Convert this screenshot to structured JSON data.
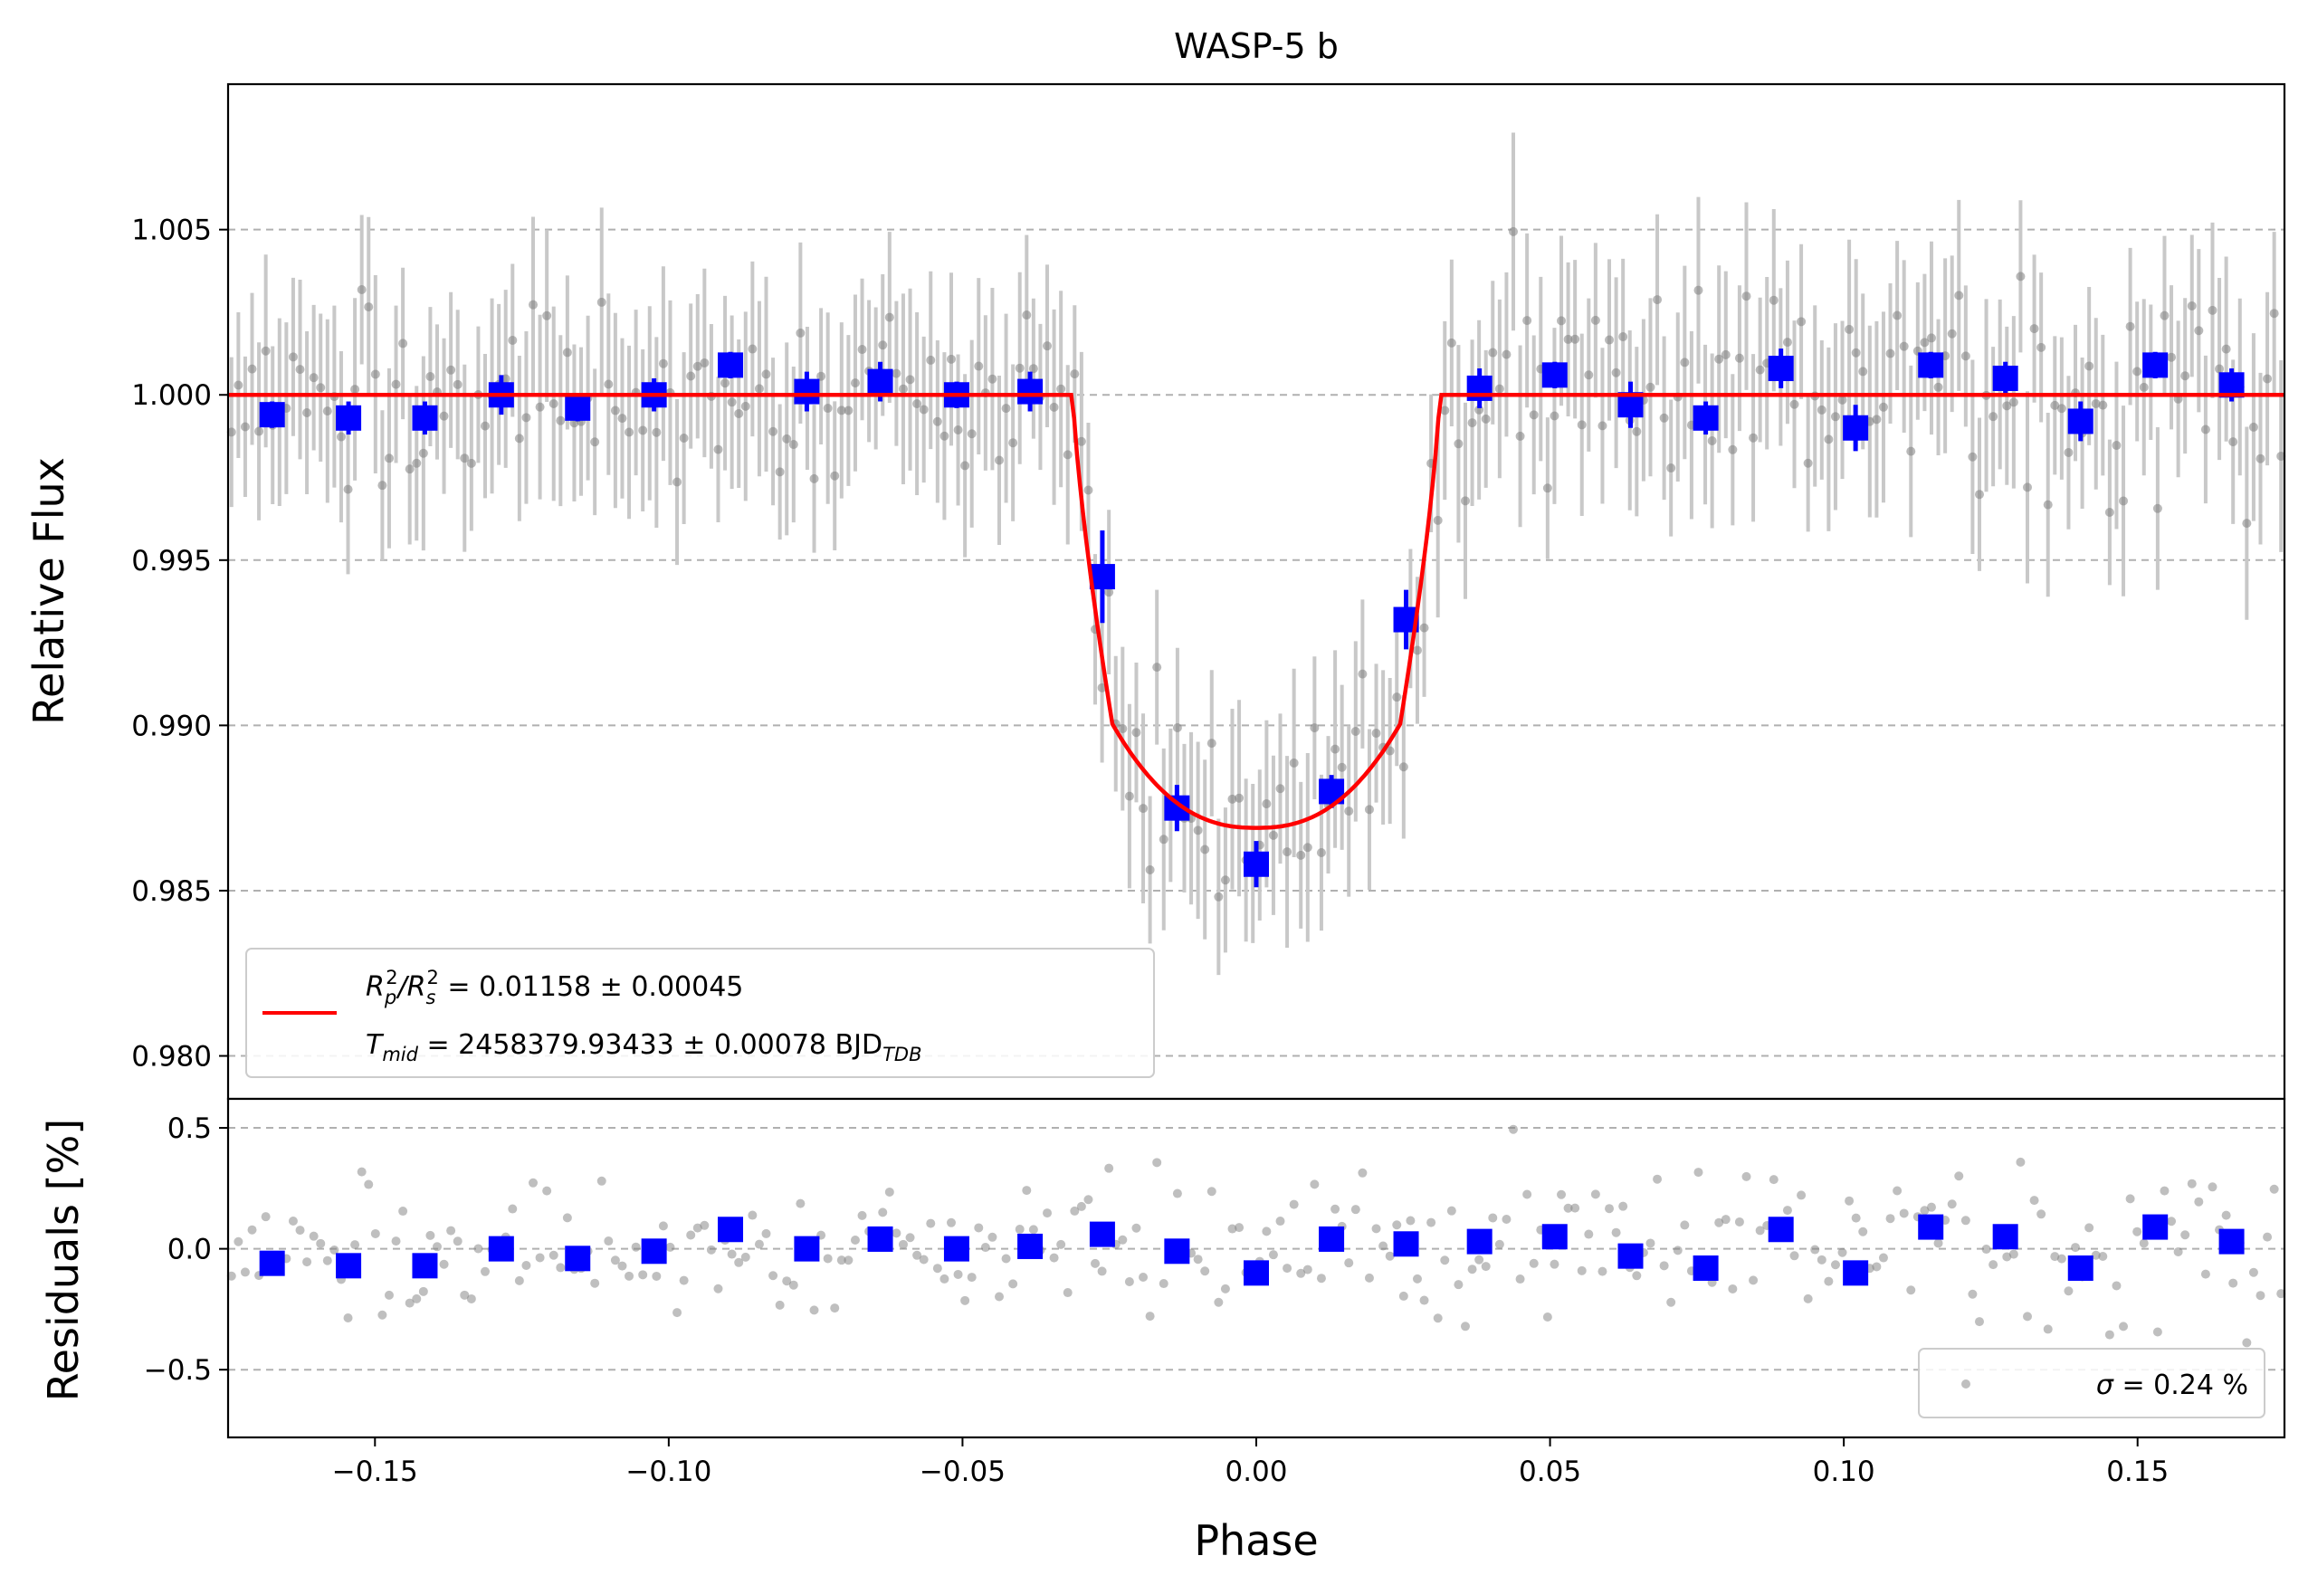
{
  "chart_data": {
    "type": "scatter",
    "title": "WASP-5 b",
    "xlabel": "Phase",
    "xlim": [
      -0.175,
      0.175
    ],
    "x_ticks": [
      -0.15,
      -0.1,
      -0.05,
      0.0,
      0.05,
      0.1,
      0.15
    ],
    "x_tick_labels": [
      "−0.15",
      "−0.10",
      "−0.05",
      "0.00",
      "0.05",
      "0.10",
      "0.15"
    ],
    "colors": {
      "model": "#ff0000",
      "binned": "#0000ff",
      "raw": "#808080",
      "grid": "#b0b0b0"
    },
    "top_panel": {
      "ylabel": "Relative Flux",
      "ylim": [
        0.9787,
        1.0094
      ],
      "y_ticks": [
        0.98,
        0.985,
        0.99,
        0.995,
        1.0,
        1.005
      ],
      "y_tick_labels": [
        "0.980",
        "0.985",
        "0.990",
        "0.995",
        "1.000",
        "1.005"
      ],
      "model": {
        "name": "transit model",
        "baseline": 1.0,
        "depth_min": 0.9869,
        "contact_phases": [
          -0.0312,
          -0.0245,
          0.0245,
          0.0312
        ]
      },
      "binned": {
        "x": [
          -0.1675,
          -0.1545,
          -0.1415,
          -0.1285,
          -0.1155,
          -0.1025,
          -0.0895,
          -0.0765,
          -0.064,
          -0.051,
          -0.0385,
          -0.0262,
          -0.0135,
          0.0,
          0.0128,
          0.0255,
          0.038,
          0.0508,
          0.0637,
          0.0765,
          0.0893,
          0.102,
          0.1148,
          0.1275,
          0.1403,
          0.153,
          0.166
        ],
        "y": [
          0.9994,
          0.9993,
          0.9993,
          1.0,
          0.9996,
          1.0,
          1.0009,
          1.0001,
          1.0004,
          1.0,
          1.0001,
          0.9945,
          0.9875,
          0.9858,
          0.988,
          0.9932,
          1.0002,
          1.0006,
          0.9997,
          0.9993,
          1.0008,
          0.999,
          1.0009,
          1.0005,
          0.9992,
          1.0009,
          1.0003
        ],
        "err": [
          0.0004,
          0.0005,
          0.0005,
          0.0006,
          0.0004,
          0.0005,
          0.0004,
          0.0006,
          0.0006,
          0.0004,
          0.0006,
          0.0014,
          0.0007,
          0.0007,
          0.0005,
          0.0009,
          0.0006,
          0.0004,
          0.0007,
          0.0005,
          0.0006,
          0.0007,
          0.0004,
          0.0005,
          0.0006,
          0.0004,
          0.0005
        ]
      },
      "raw_points": {
        "count": 300,
        "typical_error": 0.0024
      }
    },
    "bottom_panel": {
      "ylabel": "Residuals [%]",
      "ylim": [
        -0.78,
        0.62
      ],
      "y_ticks": [
        -0.5,
        0.0,
        0.5
      ],
      "y_tick_labels": [
        "−0.5",
        "0.0",
        "0.5"
      ],
      "binned": {
        "y": [
          -0.06,
          -0.07,
          -0.07,
          0.0,
          -0.04,
          -0.01,
          0.08,
          0.0,
          0.04,
          0.0,
          0.01,
          0.06,
          -0.01,
          -0.1,
          0.04,
          0.02,
          0.03,
          0.05,
          -0.03,
          -0.08,
          0.08,
          -0.1,
          0.09,
          0.05,
          -0.08,
          0.09,
          0.03
        ]
      },
      "sigma_percent": 0.24
    },
    "legend": {
      "top_placement": "lower-left",
      "line1": {
        "prefix": "R",
        "sub1": "p",
        "sup1": "2",
        "sep": "/R",
        "sub2": "s",
        "sup2": "2",
        "value": " = 0.01158 ± 0.00045"
      },
      "line2": {
        "prefix": "T",
        "sub": "mid",
        "value": " = 2458379.93433 ± 0.00078 BJD",
        "unit_sub": "TDB"
      },
      "bottom_placement": "lower-right",
      "bottom": {
        "sigma_symbol": "σ",
        "value": " = 0.24 %"
      }
    }
  }
}
